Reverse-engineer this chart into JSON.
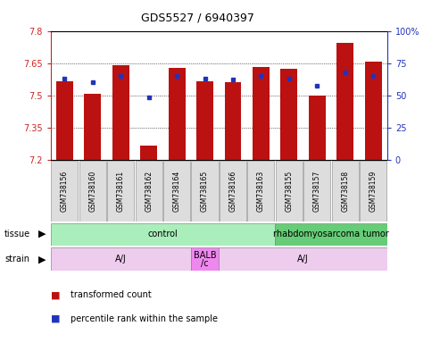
{
  "title": "GDS5527 / 6940397",
  "samples": [
    "GSM738156",
    "GSM738160",
    "GSM738161",
    "GSM738162",
    "GSM738164",
    "GSM738165",
    "GSM738166",
    "GSM738163",
    "GSM738155",
    "GSM738157",
    "GSM738158",
    "GSM738159"
  ],
  "bar_values": [
    7.565,
    7.505,
    7.638,
    7.265,
    7.627,
    7.563,
    7.56,
    7.632,
    7.625,
    7.5,
    7.745,
    7.658
  ],
  "percentile_values": [
    63,
    60,
    65,
    48,
    65,
    63,
    62,
    65,
    63,
    57,
    68,
    65
  ],
  "ymin": 7.2,
  "ymax": 7.8,
  "yticks": [
    7.2,
    7.35,
    7.5,
    7.65,
    7.8
  ],
  "right_yticks": [
    0,
    25,
    50,
    75,
    100
  ],
  "bar_color": "#BB1111",
  "dot_color": "#2233BB",
  "tissue_labels": [
    {
      "text": "control",
      "start": 0,
      "end": 7,
      "color": "#AAEEBB"
    },
    {
      "text": "rhabdomyosarcoma tumor",
      "start": 8,
      "end": 11,
      "color": "#66CC77"
    }
  ],
  "strain_labels": [
    {
      "text": "A/J",
      "start": 0,
      "end": 4,
      "color": "#EECCEE"
    },
    {
      "text": "BALB\n/c",
      "start": 5,
      "end": 5,
      "color": "#EE88EE"
    },
    {
      "text": "A/J",
      "start": 6,
      "end": 11,
      "color": "#EECCEE"
    }
  ],
  "legend_bar_color": "#BB1111",
  "legend_dot_color": "#2233BB",
  "left_axis_color": "#CC2222",
  "right_axis_color": "#2233BB",
  "xticklabel_bg": "#DDDDDD",
  "xticklabel_border": "#999999"
}
